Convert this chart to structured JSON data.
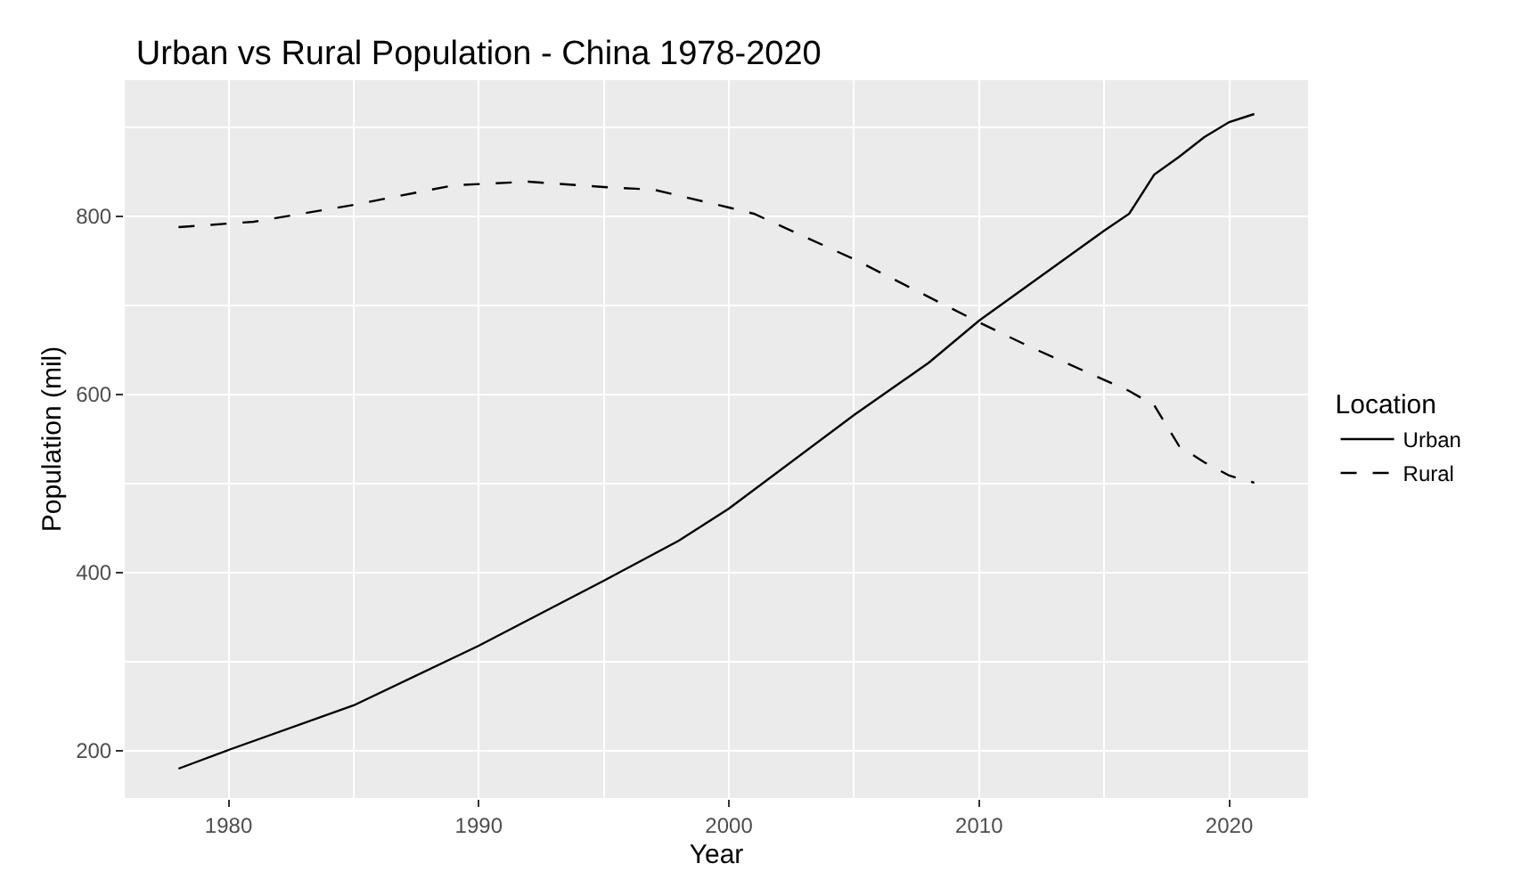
{
  "chart_data": {
    "type": "line",
    "title": "Urban vs Rural Population - China 1978-2020",
    "xlabel": "Year",
    "ylabel": "Population (mil)",
    "legend_title": "Location",
    "legend": "right",
    "grid": true,
    "xlim": [
      1975.85,
      2023.15
    ],
    "xticks": [
      1980,
      1990,
      2000,
      2010,
      2020
    ],
    "ylim": [
      147,
      953
    ],
    "yticks": [
      200,
      400,
      600,
      800
    ],
    "series": [
      {
        "name": "Urban",
        "color": "#000000",
        "line_style": "solid",
        "x": [
          1978,
          1980,
          1985,
          1990,
          1995,
          1998,
          2000,
          2005,
          2008,
          2010,
          2015,
          2016,
          2017,
          2018,
          2019,
          2020,
          2021
        ],
        "values": [
          180,
          201,
          251,
          318,
          391,
          436,
          472,
          577,
          636,
          683,
          784,
          803,
          847,
          867,
          889,
          906,
          915
        ]
      },
      {
        "name": "Rural",
        "color": "#000000",
        "line_style": "dashed",
        "x": [
          1978,
          1981,
          1985,
          1989,
          1992,
          1995,
          1997,
          2000,
          2001,
          2005,
          2010,
          2012,
          2016,
          2017,
          2018,
          2019,
          2020,
          2021
        ],
        "values": [
          788,
          794,
          813,
          835,
          839,
          833,
          830,
          810,
          803,
          752,
          681,
          654,
          604,
          588,
          542,
          524,
          509,
          501
        ]
      }
    ]
  }
}
